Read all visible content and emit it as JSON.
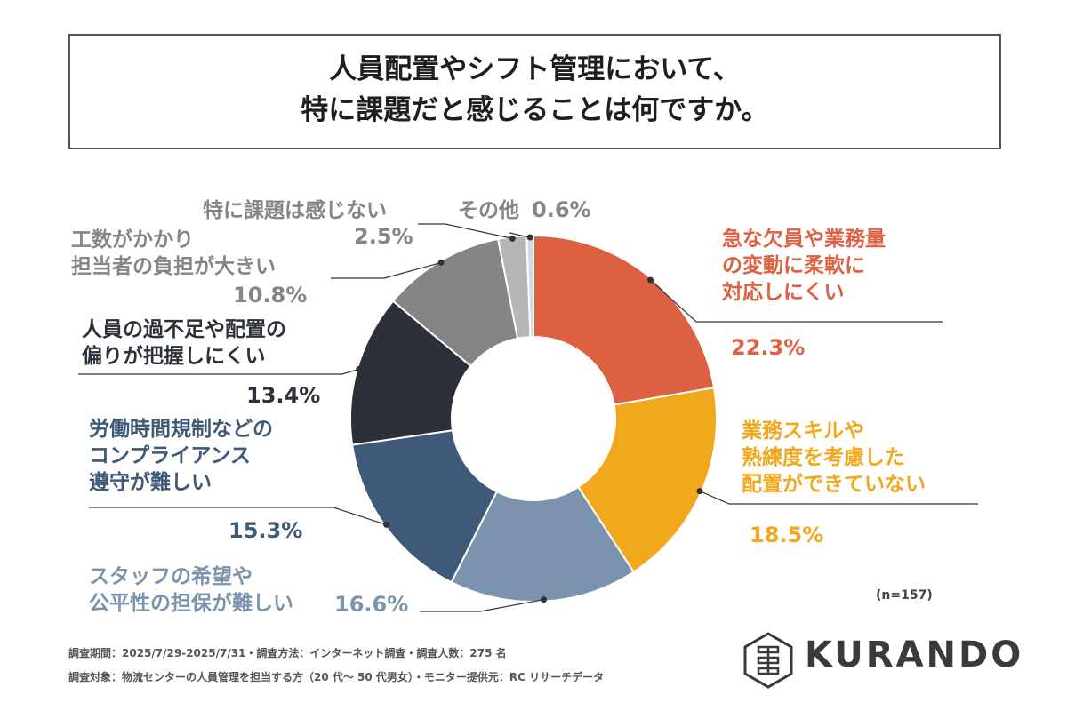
{
  "title": {
    "line1": "人員配置やシフト管理において、",
    "line2": "特に課題だと感じることは何ですか。"
  },
  "chart_data": {
    "type": "pie",
    "donut": true,
    "categories": [
      "急な欠員や業務量の変動に柔軟に対応しにくい",
      "業務スキルや熟練度を考慮した配置ができていない",
      "スタッフの希望や公平性の担保が難しい",
      "労働時間規制などのコンプライアンス遵守が難しい",
      "人員の過不足や配置の偏りが把握しにくい",
      "工数がかかり担当者の負担が大きい",
      "特に課題は感じない",
      "その他"
    ],
    "values": [
      22.3,
      18.5,
      16.6,
      15.3,
      13.4,
      10.8,
      2.5,
      0.6
    ],
    "colors": [
      "#dc6143",
      "#f2a81d",
      "#7b93ac",
      "#3f5a78",
      "#2b3039",
      "#858585",
      "#b6b6b6",
      "#d9d9d9"
    ]
  },
  "labels": [
    {
      "lines": [
        "急な欠員や業務量",
        "の変動に柔軟に",
        "対応しにくい"
      ],
      "pct": "22.3%"
    },
    {
      "lines": [
        "業務スキルや",
        "熟練度を考慮した",
        "配置ができていない"
      ],
      "pct": "18.5%"
    },
    {
      "lines": [
        "スタッフの希望や",
        "公平性の担保が難しい"
      ],
      "pct": "16.6%"
    },
    {
      "lines": [
        "労働時間規制などの",
        "コンプライアンス",
        "遵守が難しい"
      ],
      "pct": "15.3%"
    },
    {
      "lines": [
        "人員の過不足や配置の",
        "偏りが把握しにくい"
      ],
      "pct": "13.4%"
    },
    {
      "lines": [
        "工数がかかり",
        "担当者の負担が大きい"
      ],
      "pct": "10.8%"
    },
    {
      "lines": [
        "特に課題は感じない"
      ],
      "pct": "2.5%"
    },
    {
      "lines": [
        "その他"
      ],
      "pct": "0.6%"
    }
  ],
  "sample": "(n=157)",
  "footer": {
    "line1": "調査期間：2025/7/29-2025/7/31・調査方法：インターネット調査・調査人数：275 名",
    "line2": "調査対象：物流センターの人員管理を担当する方（20 代～ 50 代男女）・モニター提供元：RC リサーチデータ"
  },
  "logo": {
    "text": "KURANDO"
  }
}
